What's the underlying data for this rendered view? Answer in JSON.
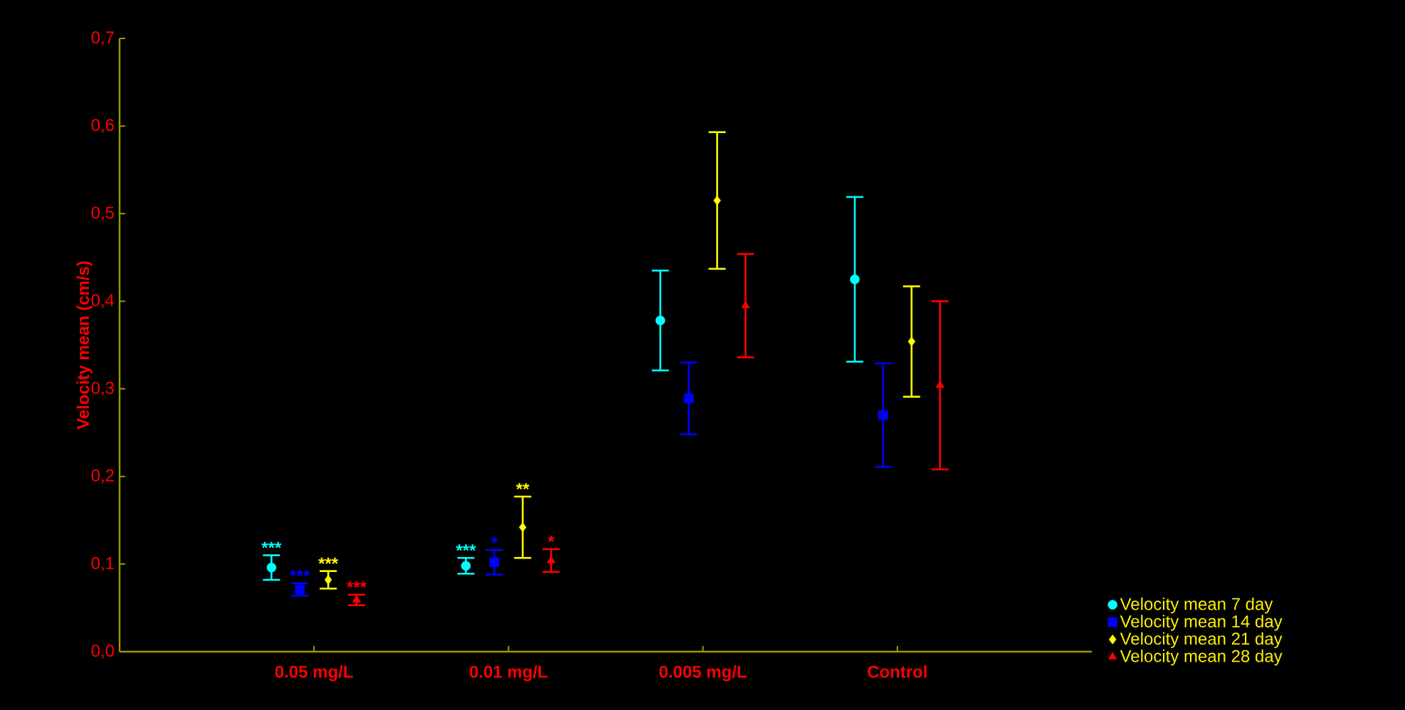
{
  "chart_data": {
    "type": "scatter",
    "ylabel": "Velocity mean (cm/s)",
    "categories": [
      "0.05 mg/L",
      "0.01 mg/L",
      "0.005 mg/L",
      "Control"
    ],
    "ylim": [
      0,
      0.7
    ],
    "yticks": [
      {
        "value": 0,
        "label": "0,0"
      },
      {
        "value": 0.1,
        "label": "0,1"
      },
      {
        "value": 0.2,
        "label": "0,2"
      },
      {
        "value": 0.3,
        "label": "0,3"
      },
      {
        "value": 0.4,
        "label": "0,4"
      },
      {
        "value": 0.5,
        "label": "0,5"
      },
      {
        "value": 0.6,
        "label": "0,6"
      },
      {
        "value": 0.7,
        "label": "0,7"
      }
    ],
    "legend": "bottom right",
    "grid": false,
    "series": [
      {
        "name": "Velocity mean 7 day",
        "color": "#00ffff",
        "marker": "circle",
        "values": [
          0.096,
          0.098,
          0.378,
          0.425
        ],
        "errors": [
          0.014,
          0.009,
          0.057,
          0.094
        ],
        "value_labels": [
          "***",
          "***",
          null,
          null
        ]
      },
      {
        "name": "Velocity mean 14 day",
        "color": "#0000ff",
        "marker": "square",
        "values": [
          0.071,
          0.102,
          0.289,
          0.27
        ],
        "errors": [
          0.007,
          0.014,
          0.041,
          0.059
        ],
        "value_labels": [
          "***",
          "*",
          null,
          null
        ]
      },
      {
        "name": "Velocity mean 21 day",
        "color": "#ffff00",
        "marker": "diamond",
        "values": [
          0.082,
          0.142,
          0.515,
          0.354
        ],
        "errors": [
          0.01,
          0.035,
          0.078,
          0.063
        ],
        "value_labels": [
          "***",
          "**",
          null,
          null
        ]
      },
      {
        "name": "Velocity mean 28 day",
        "color": "#ff0000",
        "marker": "triangle",
        "values": [
          0.059,
          0.104,
          0.395,
          0.304
        ],
        "errors": [
          0.006,
          0.013,
          0.059,
          0.096
        ],
        "value_labels": [
          "***",
          "*",
          null,
          null
        ]
      }
    ]
  }
}
